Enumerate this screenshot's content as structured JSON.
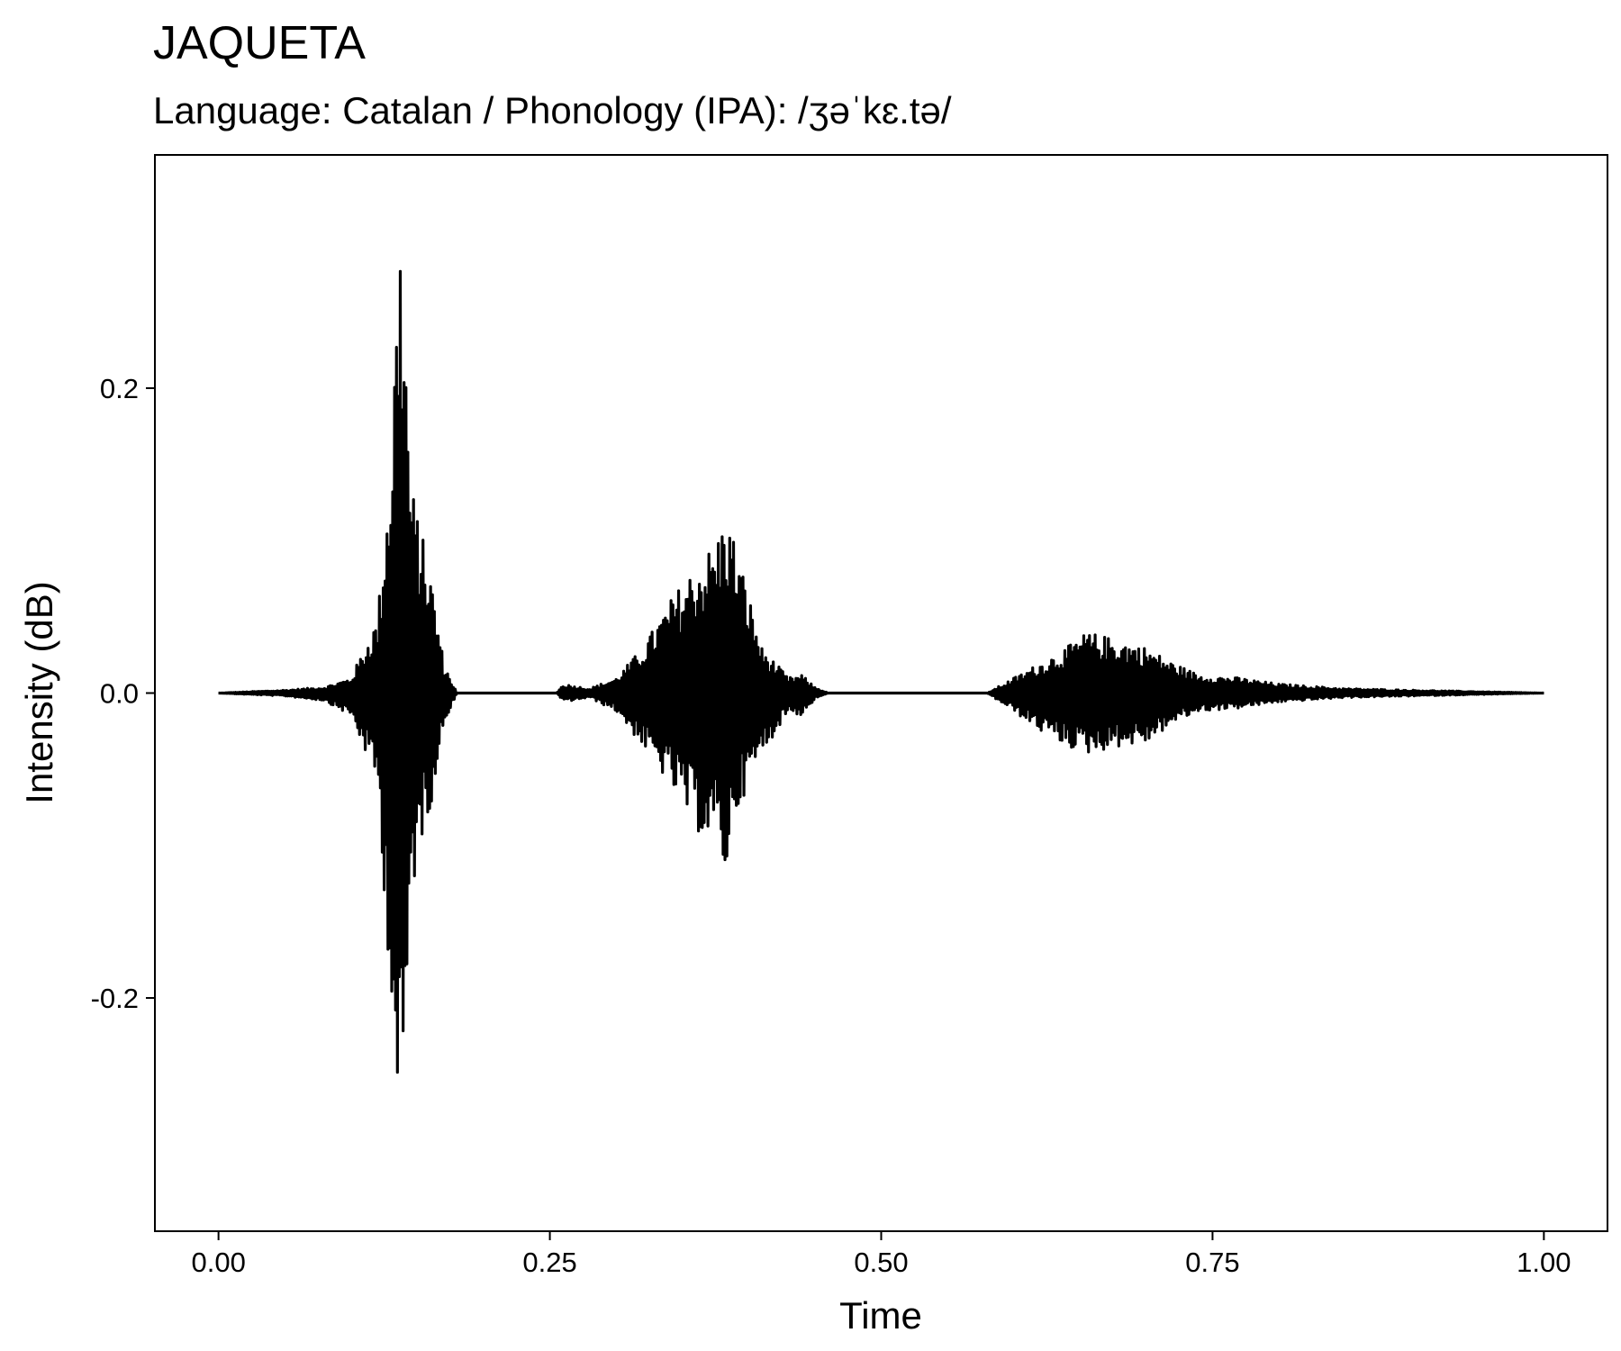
{
  "chart_data": {
    "type": "line",
    "title": "JAQUETA",
    "subtitle": "Language: Catalan / Phonology (IPA): /ʒəˈkɛ.tə/",
    "xlabel": "Time",
    "ylabel": "Intensity (dB)",
    "xlim": [
      -0.048,
      1.048
    ],
    "ylim": [
      -0.353,
      0.353
    ],
    "x_ticks": [
      {
        "value": 0.0,
        "label": "0.00"
      },
      {
        "value": 0.25,
        "label": "0.25"
      },
      {
        "value": 0.5,
        "label": "0.50"
      },
      {
        "value": 0.75,
        "label": "0.75"
      },
      {
        "value": 1.0,
        "label": "1.00"
      }
    ],
    "y_ticks": [
      {
        "value": -0.2,
        "label": "-0.2"
      },
      {
        "value": 0.0,
        "label": "0.0"
      },
      {
        "value": 0.2,
        "label": "0.2"
      }
    ],
    "grid": false,
    "line_color": "#000000",
    "series": [
      {
        "envelope": [
          {
            "x": 0.0,
            "upper": 0.0,
            "lower": 0.0
          },
          {
            "x": 0.05,
            "upper": 0.002,
            "lower": -0.002
          },
          {
            "x": 0.08,
            "upper": 0.004,
            "lower": -0.005
          },
          {
            "x": 0.1,
            "upper": 0.01,
            "lower": -0.015
          },
          {
            "x": 0.12,
            "upper": 0.05,
            "lower": -0.06
          },
          {
            "x": 0.13,
            "upper": 0.16,
            "lower": -0.2
          },
          {
            "x": 0.135,
            "upper": 0.28,
            "lower": -0.29
          },
          {
            "x": 0.138,
            "upper": 0.32,
            "lower": -0.32
          },
          {
            "x": 0.145,
            "upper": 0.14,
            "lower": -0.14
          },
          {
            "x": 0.152,
            "upper": 0.11,
            "lower": -0.1
          },
          {
            "x": 0.16,
            "upper": 0.08,
            "lower": -0.075
          },
          {
            "x": 0.17,
            "upper": 0.02,
            "lower": -0.02
          },
          {
            "x": 0.18,
            "upper": 0.0,
            "lower": 0.0
          },
          {
            "x": 0.255,
            "upper": 0.0,
            "lower": 0.0
          },
          {
            "x": 0.26,
            "upper": 0.006,
            "lower": -0.006
          },
          {
            "x": 0.28,
            "upper": 0.003,
            "lower": -0.003
          },
          {
            "x": 0.3,
            "upper": 0.01,
            "lower": -0.012
          },
          {
            "x": 0.32,
            "upper": 0.03,
            "lower": -0.035
          },
          {
            "x": 0.34,
            "upper": 0.06,
            "lower": -0.06
          },
          {
            "x": 0.36,
            "upper": 0.085,
            "lower": -0.09
          },
          {
            "x": 0.375,
            "upper": 0.1,
            "lower": -0.1
          },
          {
            "x": 0.383,
            "upper": 0.12,
            "lower": -0.12
          },
          {
            "x": 0.39,
            "upper": 0.1,
            "lower": -0.08
          },
          {
            "x": 0.41,
            "upper": 0.03,
            "lower": -0.04
          },
          {
            "x": 0.43,
            "upper": 0.01,
            "lower": -0.012
          },
          {
            "x": 0.44,
            "upper": 0.012,
            "lower": -0.015
          },
          {
            "x": 0.45,
            "upper": 0.004,
            "lower": -0.004
          },
          {
            "x": 0.46,
            "upper": 0.0,
            "lower": 0.0
          },
          {
            "x": 0.58,
            "upper": 0.0,
            "lower": 0.0
          },
          {
            "x": 0.6,
            "upper": 0.01,
            "lower": -0.012
          },
          {
            "x": 0.62,
            "upper": 0.02,
            "lower": -0.025
          },
          {
            "x": 0.64,
            "upper": 0.03,
            "lower": -0.035
          },
          {
            "x": 0.655,
            "upper": 0.04,
            "lower": -0.04
          },
          {
            "x": 0.68,
            "upper": 0.035,
            "lower": -0.035
          },
          {
            "x": 0.7,
            "upper": 0.03,
            "lower": -0.033
          },
          {
            "x": 0.72,
            "upper": 0.02,
            "lower": -0.02
          },
          {
            "x": 0.74,
            "upper": 0.012,
            "lower": -0.012
          },
          {
            "x": 0.77,
            "upper": 0.01,
            "lower": -0.01
          },
          {
            "x": 0.8,
            "upper": 0.006,
            "lower": -0.006
          },
          {
            "x": 0.85,
            "upper": 0.003,
            "lower": -0.003
          },
          {
            "x": 0.9,
            "upper": 0.002,
            "lower": -0.002
          },
          {
            "x": 1.0,
            "upper": 0.0,
            "lower": 0.0
          }
        ]
      }
    ]
  }
}
